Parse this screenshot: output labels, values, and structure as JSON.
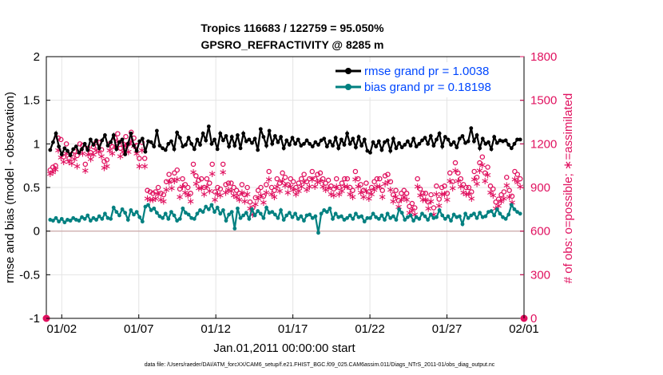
{
  "chart_data": {
    "type": "line",
    "title": [
      "Tropics 116683 / 122759 = 95.050%",
      "GPSRO_REFRACTIVITY @ 8285 m"
    ],
    "xlabel": "Jan.01,2011 00:00:00 start",
    "ylabel": "rmse and bias (model - observation)",
    "y2label": "# of obs: o=possible; ∗=assimilated",
    "footer": "data file: /Users/raeder/DAI/ATM_forcXX/CAM6_setup/f.e21.FHIST_BGC.f09_025.CAM6assim.011/Diags_NTrS_2011-01/obs_diag_output.nc",
    "xlim": [
      0,
      31
    ],
    "ylim": [
      -1,
      2
    ],
    "y2lim": [
      0,
      1800
    ],
    "x_ticks": [
      {
        "x": 1,
        "label": "01/02"
      },
      {
        "x": 6,
        "label": "01/07"
      },
      {
        "x": 11,
        "label": "01/12"
      },
      {
        "x": 16,
        "label": "01/17"
      },
      {
        "x": 21,
        "label": "01/22"
      },
      {
        "x": 26,
        "label": "01/27"
      },
      {
        "x": 31,
        "label": "02/01"
      }
    ],
    "y_ticks": [
      {
        "v": -1,
        "label": "-1"
      },
      {
        "v": -0.5,
        "label": "-0.5"
      },
      {
        "v": 0,
        "label": "0"
      },
      {
        "v": 0.5,
        "label": "0.5"
      },
      {
        "v": 1,
        "label": "1"
      },
      {
        "v": 1.5,
        "label": "1.5"
      },
      {
        "v": 2,
        "label": "2"
      }
    ],
    "y2_ticks": [
      {
        "v": 0,
        "label": "0"
      },
      {
        "v": 300,
        "label": "300"
      },
      {
        "v": 600,
        "label": "600"
      },
      {
        "v": 900,
        "label": "900"
      },
      {
        "v": 1200,
        "label": "1200"
      },
      {
        "v": 1500,
        "label": "1500"
      },
      {
        "v": 1800,
        "label": "1800"
      }
    ],
    "grid": true,
    "legend_position": "top-right",
    "colors": {
      "rmse": "#000000",
      "bias": "#008080",
      "obs": "#e0115f",
      "legend_text": "#0047ff",
      "zero_line": "#c8a0a0"
    },
    "series": [
      {
        "name": "rmse",
        "legend": "rmse grand pr = 1.0038",
        "marker": "circle",
        "values": [
          0.93,
          1.02,
          1.12,
          0.97,
          0.88,
          0.95,
          0.92,
          0.87,
          0.94,
          0.97,
          0.9,
          0.94,
          1.0,
          0.93,
          1.05,
          0.99,
          1.04,
          0.95,
          1.04,
          1.1,
          0.98,
          1.02,
          1.1,
          0.94,
          1.02,
          1.05,
          0.88,
          1.0,
          1.12,
          0.98,
          0.92,
          1.03,
          1.06,
          0.91,
          1.03,
          1.02,
          0.97,
          1.15,
          0.98,
          0.95,
          0.93,
          1.0,
          1.03,
          0.94,
          1.13,
          1.07,
          0.97,
          0.99,
          1.07,
          1.0,
          0.94,
          1.05,
          0.99,
          1.12,
          1.04,
          1.2,
          1.0,
          1.05,
          0.94,
          1.12,
          1.04,
          1.09,
          0.97,
          1.08,
          0.98,
          1.1,
          0.95,
          1.12,
          1.03,
          1.05,
          1.01,
          1.06,
          0.93,
          1.17,
          1.08,
          0.98,
          1.15,
          1.0,
          1.09,
          1.02,
          1.08,
          0.95,
          1.04,
          0.99,
          1.07,
          1.0,
          1.05,
          0.98,
          1.0,
          1.04,
          1.0,
          0.97,
          1.02,
          0.99,
          1.04,
          1.06,
          0.97,
          1.03,
          0.98,
          1.07,
          0.95,
          1.05,
          0.99,
          1.12,
          1.0,
          1.06,
          0.96,
          1.08,
          0.98,
          1.05,
          0.92,
          0.9,
          1.02,
          0.97,
          1.03,
          0.93,
          1.02,
          1.04,
          0.92,
          1.06,
          0.95,
          1.01,
          0.96,
          0.99,
          1.03,
          0.98,
          1.06,
          0.97,
          1.0,
          1.04,
          1.07,
          1.0,
          1.09,
          0.98,
          1.05,
          1.12,
          0.97,
          1.08,
          1.05,
          0.99,
          1.02,
          0.96,
          1.06,
          1.09,
          1.01,
          1.03,
          1.18,
          1.03,
          1.1,
          0.95,
          1.06,
          1.0,
          1.02,
          0.94,
          1.08,
          1.01,
          1.04,
          1.03,
          1.04,
          0.99,
          0.95,
          1.0,
          1.05,
          1.05
        ]
      },
      {
        "name": "bias",
        "legend": "bias grand pr = 0.18198",
        "marker": "circle",
        "values": [
          0.13,
          0.12,
          0.15,
          0.11,
          0.14,
          0.1,
          0.13,
          0.12,
          0.15,
          0.13,
          0.12,
          0.16,
          0.14,
          0.18,
          0.12,
          0.15,
          0.13,
          0.17,
          0.14,
          0.2,
          0.15,
          0.14,
          0.27,
          0.22,
          0.18,
          0.25,
          0.21,
          0.13,
          0.24,
          0.19,
          0.22,
          0.16,
          0.11,
          0.28,
          0.3,
          0.24,
          0.26,
          0.21,
          0.17,
          0.15,
          0.2,
          0.14,
          0.22,
          0.18,
          0.12,
          0.14,
          0.26,
          0.21,
          0.19,
          0.15,
          0.14,
          0.2,
          0.24,
          0.22,
          0.28,
          0.25,
          0.3,
          0.22,
          0.27,
          0.2,
          0.24,
          0.12,
          0.19,
          0.22,
          0.03,
          0.26,
          0.15,
          0.18,
          0.21,
          0.14,
          0.25,
          0.18,
          0.23,
          0.2,
          0.15,
          0.27,
          0.21,
          0.22,
          0.19,
          0.15,
          0.24,
          0.13,
          0.18,
          0.21,
          0.16,
          0.2,
          0.14,
          0.17,
          0.12,
          0.18,
          0.19,
          0.15,
          0.17,
          -0.02,
          0.2,
          0.24,
          0.22,
          0.26,
          0.14,
          0.2,
          0.16,
          0.17,
          0.13,
          0.15,
          0.18,
          0.14,
          0.2,
          0.16,
          0.17,
          0.11,
          0.15,
          0.15,
          0.2,
          0.16,
          0.14,
          0.18,
          0.13,
          0.2,
          0.15,
          0.17,
          0.13,
          0.25,
          0.21,
          0.13,
          0.16,
          0.18,
          0.12,
          0.16,
          0.14,
          0.2,
          0.17,
          0.13,
          0.19,
          0.15,
          0.16,
          0.24,
          0.18,
          0.14,
          0.17,
          0.12,
          0.19,
          0.16,
          0.17,
          0.08,
          0.2,
          0.15,
          0.18,
          0.2,
          0.15,
          0.21,
          0.16,
          0.17,
          0.22,
          0.23,
          0.18,
          0.25,
          0.2,
          0.16,
          0.14,
          0.19,
          0.3,
          0.25,
          0.22,
          0.2
        ]
      },
      {
        "name": "possible",
        "marker": "o",
        "values": [
          1020,
          1040,
          1050,
          1240,
          1230,
          1110,
          1200,
          1100,
          1130,
          1150,
          1120,
          1200,
          1190,
          1060,
          1170,
          1140,
          1180,
          1210,
          1210,
          1160,
          1080,
          1090,
          1200,
          1180,
          1240,
          1270,
          1170,
          1200,
          1250,
          1200,
          1280,
          1240,
          1190,
          1100,
          1210,
          1100,
          880,
          870,
          860,
          870,
          900,
          860,
          850,
          940,
          990,
          950,
          1000,
          1020,
          890,
          960,
          920,
          900,
          860,
          1060,
          980,
          950,
          960,
          900,
          960,
          930,
          1060,
          870,
          900,
          890,
          1060,
          920,
          930,
          930,
          900,
          880,
          860,
          920,
          850,
          900,
          800,
          760,
          830,
          880,
          900,
          840,
          920,
          1010,
          900,
          880,
          960,
          930,
          1000,
          970,
          920,
          960,
          940,
          900,
          930,
          960,
          990,
          940,
          960,
          1010,
          960,
          990,
          1000,
          960,
          930,
          950,
          910,
          890,
          960,
          900,
          930,
          960,
          960,
          900,
          880,
          1010,
          960,
          920,
          880,
          930,
          870,
          900,
          940,
          960,
          960,
          880,
          980,
          990,
          940,
          850,
          880,
          810,
          860,
          880,
          860,
          770,
          790,
          760,
          960,
          890,
          860,
          860,
          800,
          850,
          760,
          910,
          820,
          900,
          910,
          860,
          1000,
          940,
          1070,
          1000,
          960,
          920,
          900,
          900,
          870,
          1010,
          970,
          1070,
          1110,
          1000,
          1040,
          910,
          890,
          800,
          820,
          850,
          870,
          970,
          880,
          840,
          1010,
          990,
          960
        ]
      },
      {
        "name": "assimilated",
        "marker": "*",
        "values": [
          1000,
          1010,
          1030,
          1160,
          1110,
          1080,
          1140,
          1080,
          1070,
          1100,
          1050,
          1150,
          1140,
          1020,
          1130,
          1100,
          1130,
          1160,
          1150,
          1120,
          1040,
          1050,
          1160,
          1140,
          1190,
          1220,
          1120,
          1150,
          1190,
          1150,
          1220,
          1190,
          1140,
          1050,
          1160,
          1050,
          830,
          820,
          820,
          830,
          860,
          820,
          810,
          890,
          940,
          900,
          950,
          960,
          840,
          910,
          870,
          850,
          810,
          1010,
          930,
          900,
          900,
          860,
          910,
          880,
          1000,
          820,
          860,
          850,
          1010,
          870,
          890,
          880,
          850,
          840,
          820,
          870,
          810,
          860,
          760,
          720,
          790,
          830,
          850,
          800,
          870,
          960,
          860,
          840,
          910,
          880,
          950,
          920,
          870,
          910,
          890,
          860,
          880,
          910,
          940,
          890,
          910,
          960,
          910,
          940,
          950,
          910,
          890,
          900,
          860,
          850,
          910,
          860,
          880,
          910,
          910,
          860,
          840,
          960,
          910,
          870,
          840,
          880,
          830,
          860,
          890,
          910,
          910,
          840,
          930,
          940,
          890,
          810,
          840,
          770,
          820,
          840,
          820,
          730,
          750,
          720,
          910,
          850,
          820,
          820,
          760,
          810,
          720,
          860,
          780,
          860,
          860,
          820,
          950,
          900,
          1020,
          950,
          910,
          870,
          860,
          860,
          830,
          960,
          930,
          1020,
          1060,
          950,
          990,
          870,
          850,
          760,
          780,
          810,
          830,
          920,
          840,
          800,
          960,
          940,
          910
        ]
      }
    ]
  }
}
